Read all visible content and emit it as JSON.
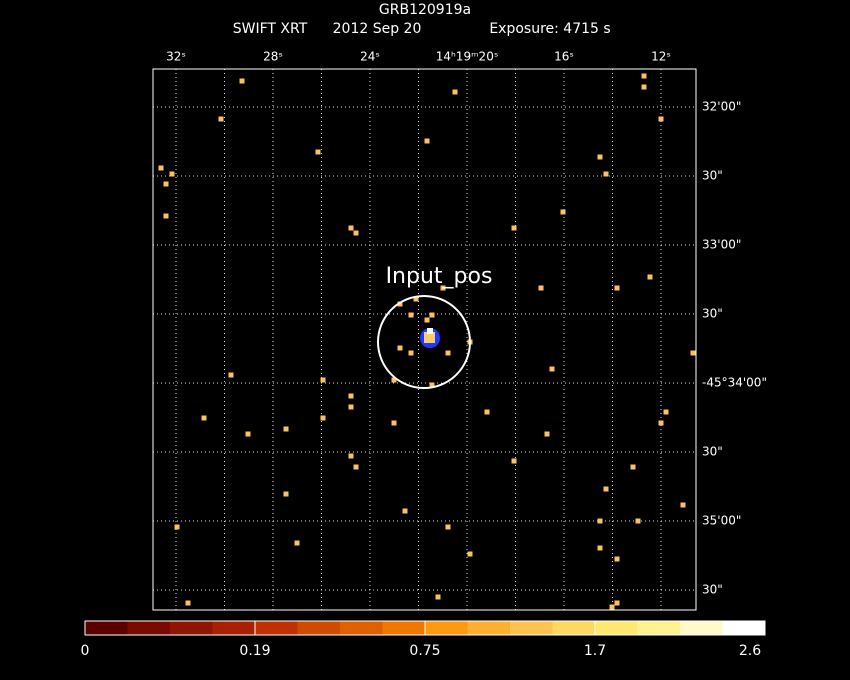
{
  "header": {
    "title": "GRB120919a",
    "instrument": "SWIFT XRT",
    "date": "2012 Sep 20",
    "exposure": "Exposure: 4715 s"
  },
  "top_axis": {
    "labels": [
      "32ˢ",
      "28ˢ",
      "24ˢ",
      "14ʰ19ᵐ20ˢ",
      "16ˢ",
      "12ˢ"
    ]
  },
  "right_axis": {
    "labels": [
      "32'00\"",
      "30\"",
      "33'00\"",
      "30\"",
      "-45°34'00\"",
      "30\"",
      "35'00\"",
      "30\""
    ]
  },
  "region": {
    "label": "Input_pos"
  },
  "colorbar": {
    "labels": [
      "0",
      "0.19",
      "0.75",
      "1.7",
      "2.6"
    ]
  }
}
